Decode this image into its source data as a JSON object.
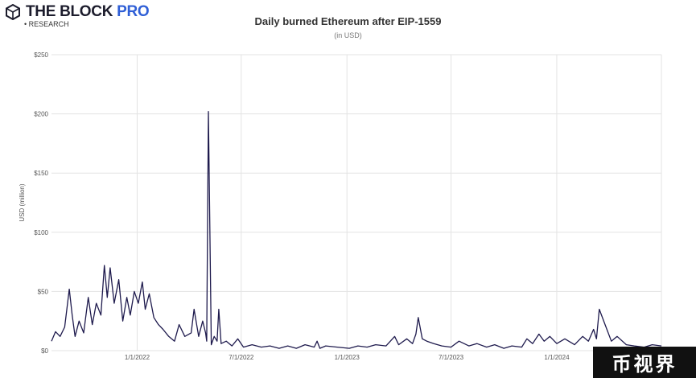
{
  "brand": {
    "name_main": "THE BLOCK",
    "name_accent": "PRO",
    "subtitle": "• RESEARCH",
    "accent_color": "#2f5fd6",
    "logo_icon": "block-cube-icon"
  },
  "watermark": {
    "text": "币视界"
  },
  "chart_data": {
    "type": "line",
    "title": "Daily burned Ethereum after EIP-1559",
    "subtitle": "(in USD)",
    "xlabel": "",
    "ylabel": "USD (million)",
    "ylim": [
      0,
      250
    ],
    "yticks": [
      0,
      50,
      100,
      150,
      200,
      250
    ],
    "ytick_labels": [
      "$0",
      "$50",
      "$100",
      "$150",
      "$200",
      "$250"
    ],
    "xlim": [
      "2021-08-05",
      "2024-07-01"
    ],
    "xticks": [
      "2022-01-01",
      "2022-07-01",
      "2023-01-01",
      "2023-07-01",
      "2024-01-01"
    ],
    "xtick_labels": [
      "1/1/2022",
      "7/1/2022",
      "1/1/2023",
      "7/1/2023",
      "1/1/2024"
    ],
    "grid": true,
    "line_color": "#1e1a4d",
    "series": [
      {
        "x": [
          "2021-08-05",
          "2021-08-12",
          "2021-08-20",
          "2021-08-28",
          "2021-09-05",
          "2021-09-10",
          "2021-09-15",
          "2021-09-22",
          "2021-09-30",
          "2021-10-08",
          "2021-10-15",
          "2021-10-22",
          "2021-10-30",
          "2021-11-05",
          "2021-11-10",
          "2021-11-15",
          "2021-11-22",
          "2021-11-30",
          "2021-12-07",
          "2021-12-14",
          "2021-12-20",
          "2021-12-27",
          "2022-01-03",
          "2022-01-10",
          "2022-01-15",
          "2022-01-22",
          "2022-01-30",
          "2022-02-07",
          "2022-02-15",
          "2022-02-25",
          "2022-03-07",
          "2022-03-15",
          "2022-03-25",
          "2022-04-05",
          "2022-04-10",
          "2022-04-18",
          "2022-04-25",
          "2022-04-30",
          "2022-05-02",
          "2022-05-05",
          "2022-05-10",
          "2022-05-15",
          "2022-05-20",
          "2022-05-23",
          "2022-05-27",
          "2022-06-05",
          "2022-06-15",
          "2022-06-25",
          "2022-07-05",
          "2022-07-20",
          "2022-08-05",
          "2022-08-20",
          "2022-09-05",
          "2022-09-20",
          "2022-10-05",
          "2022-10-20",
          "2022-11-05",
          "2022-11-10",
          "2022-11-15",
          "2022-11-25",
          "2022-12-15",
          "2023-01-05",
          "2023-01-20",
          "2023-02-05",
          "2023-02-20",
          "2023-03-10",
          "2023-03-25",
          "2023-04-01",
          "2023-04-15",
          "2023-04-25",
          "2023-05-01",
          "2023-05-05",
          "2023-05-12",
          "2023-05-20",
          "2023-06-01",
          "2023-06-15",
          "2023-07-01",
          "2023-07-15",
          "2023-08-01",
          "2023-08-15",
          "2023-09-01",
          "2023-09-15",
          "2023-10-01",
          "2023-10-15",
          "2023-11-01",
          "2023-11-10",
          "2023-11-20",
          "2023-12-01",
          "2023-12-10",
          "2023-12-20",
          "2024-01-01",
          "2024-01-15",
          "2024-02-01",
          "2024-02-15",
          "2024-02-25",
          "2024-03-05",
          "2024-03-10",
          "2024-03-15",
          "2024-03-25",
          "2024-04-05",
          "2024-04-15",
          "2024-05-01",
          "2024-05-15",
          "2024-06-01",
          "2024-06-15",
          "2024-07-01"
        ],
        "values": [
          8,
          16,
          12,
          20,
          52,
          30,
          12,
          25,
          15,
          45,
          22,
          40,
          30,
          72,
          45,
          70,
          40,
          60,
          25,
          45,
          30,
          50,
          40,
          58,
          35,
          48,
          28,
          22,
          18,
          12,
          8,
          22,
          12,
          15,
          35,
          12,
          25,
          15,
          8,
          202,
          5,
          12,
          8,
          35,
          6,
          8,
          4,
          10,
          3,
          5,
          3,
          4,
          2,
          4,
          2,
          5,
          3,
          8,
          2,
          4,
          3,
          2,
          4,
          3,
          5,
          4,
          12,
          5,
          10,
          6,
          14,
          28,
          10,
          8,
          6,
          4,
          3,
          8,
          4,
          6,
          3,
          5,
          2,
          4,
          3,
          10,
          6,
          14,
          8,
          12,
          6,
          10,
          5,
          12,
          8,
          18,
          10,
          35,
          22,
          8,
          12,
          5,
          4,
          3,
          5,
          4
        ]
      }
    ]
  }
}
